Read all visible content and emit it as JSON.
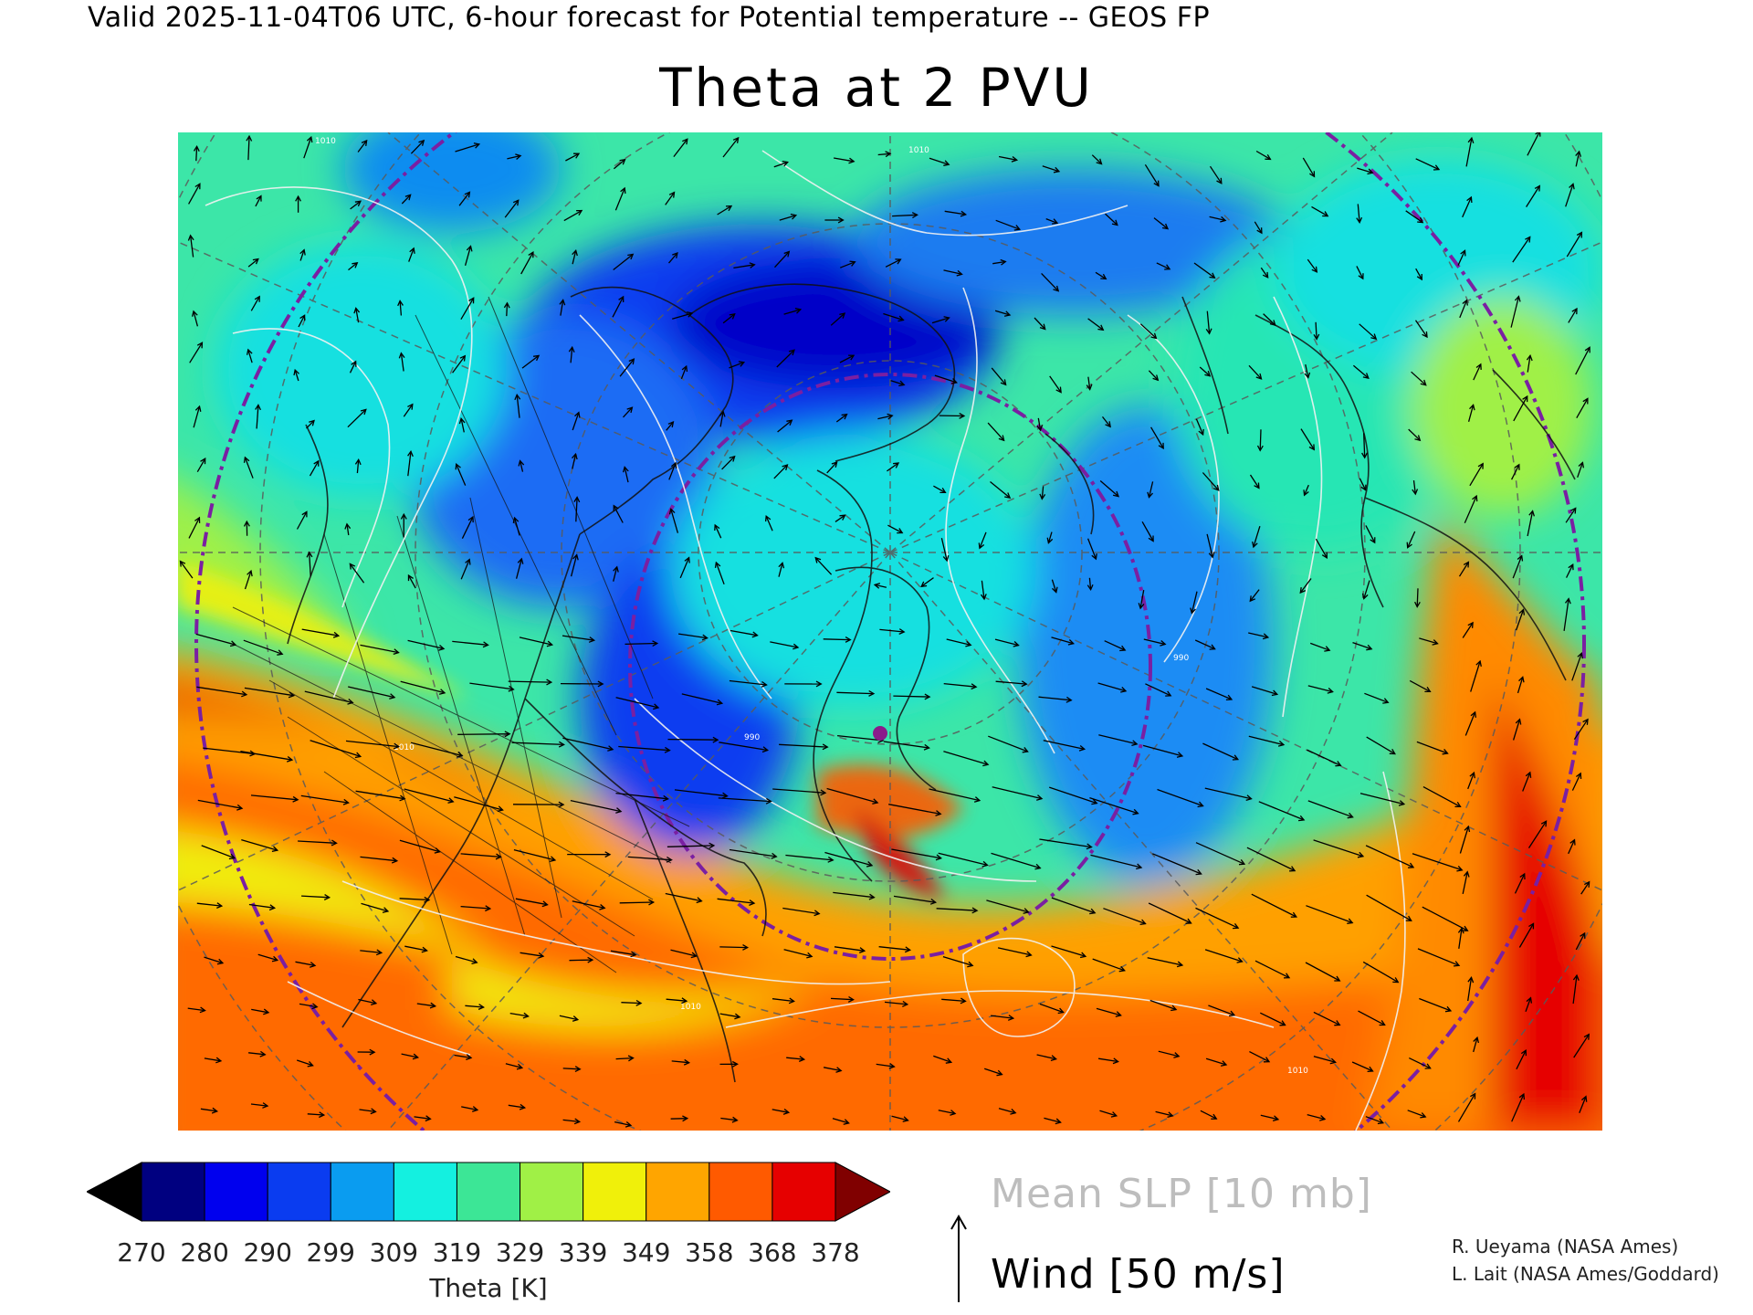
{
  "header": {
    "valid_line": "Valid 2025-11-04T06 UTC, 6-hour forecast for Potential temperature -- GEOS FP"
  },
  "title": "Theta at 2 PVU",
  "colorbar": {
    "label": "Theta [K]",
    "ticks": [
      "270",
      "280",
      "290",
      "299",
      "309",
      "319",
      "329",
      "339",
      "349",
      "358",
      "368",
      "378"
    ],
    "under_color": "#000000",
    "over_color": "#800000",
    "colors": [
      "#000080",
      "#0000ee",
      "#0a3cf0",
      "#0a9cf0",
      "#14f0e0",
      "#3ce696",
      "#a0f046",
      "#f0f00a",
      "#ffa500",
      "#ff5a00",
      "#e60000"
    ]
  },
  "legend": {
    "slp": "Mean SLP [10 mb]",
    "wind": "Wind [50 m/s]",
    "wind_icon": "arrow-up-icon"
  },
  "credits": [
    "R. Ueyama (NASA Ames)",
    "L. Lait (NASA Ames/Goddard)"
  ],
  "map": {
    "projection": "north-polar-stereographic",
    "contour_labels": [
      "1010",
      "1010",
      "1010",
      "990",
      "990",
      "1010",
      "1010"
    ],
    "marker_color": "#8b1a8b",
    "ring_color": "#7a1fa2"
  }
}
